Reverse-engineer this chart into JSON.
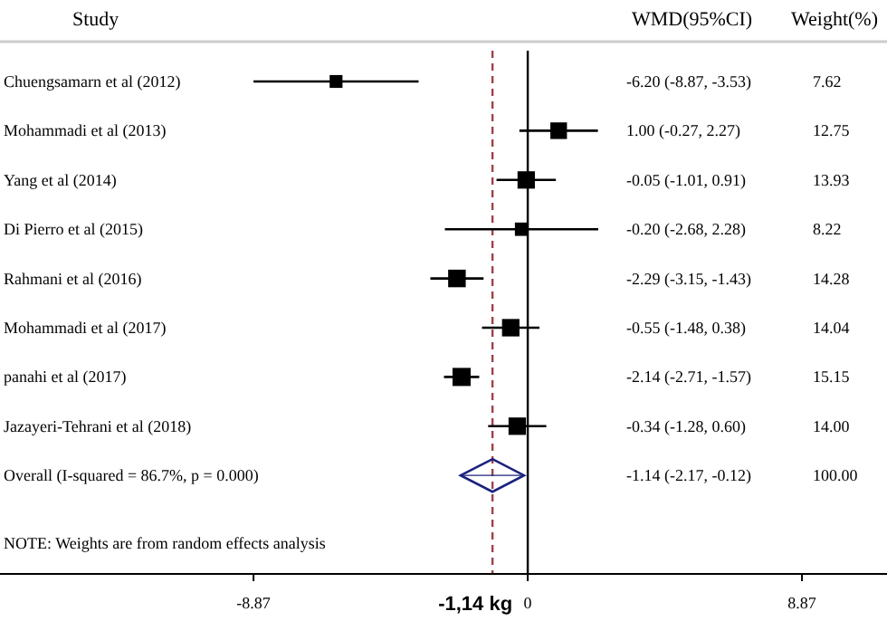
{
  "chart_data": {
    "type": "bubble",
    "orientation": "horizontal",
    "ylabel": "Study",
    "marker": "square",
    "grid": false,
    "categories": [
      "Chuengsamarn et al (2012)",
      "Mohammadi et al (2013)",
      "Yang et al (2014)",
      "Di Pierro et al (2015)",
      "Rahmani et al (2016)",
      "Mohammadi et al (2017)",
      "panahi et al (2017)",
      "Jazayeri-Tehrani et al (2018)",
      "Overall  (I-squared = 86.7%, p = 0.000)"
    ],
    "series": [
      {
        "color": "#000000",
        "values": [
          -6.2,
          1.0,
          -0.05,
          -0.2,
          -2.29,
          -0.55,
          -2.14,
          -0.34,
          null
        ],
        "errors": [
          [
            -8.87,
            -3.53
          ],
          [
            -0.27,
            2.27
          ],
          [
            -1.01,
            0.91
          ],
          [
            -2.68,
            2.28
          ],
          [
            -3.15,
            -1.43
          ],
          [
            -1.48,
            0.38
          ],
          [
            -2.71,
            -1.57
          ],
          [
            -1.28,
            0.6
          ],
          null
        ],
        "sizes": [
          0.503,
          0.842,
          0.919,
          0.543,
          0.943,
          0.927,
          1,
          0.924,
          null
        ]
      },
      {
        "type": "scatter",
        "marker": "diamond",
        "color": "#1a237e",
        "values": [
          null,
          null,
          null,
          null,
          null,
          null,
          null,
          null,
          -1.14
        ],
        "errors": [
          null,
          null,
          null,
          null,
          null,
          null,
          null,
          null,
          [
            -2.17,
            -0.12
          ]
        ]
      }
    ],
    "xlim": [
      -17.07,
      11.62
    ],
    "xticks": [
      -8.87,
      0,
      8.87
    ],
    "ref_lines": [
      {
        "axis": "x",
        "value": -1.14,
        "label": "-1,14 kg",
        "color": "#a0404a",
        "line_style": "dashed"
      },
      {
        "axis": "x",
        "value": 0,
        "color": "#000000",
        "line_style": "solid"
      }
    ],
    "annotations": [
      "WMD(95%CI)",
      "Weight(%)",
      "NOTE: Weights are from random effects analysis",
      "-6.20 (-8.87, -3.53)",
      "1.00 (-0.27, 2.27)",
      "-0.05 (-1.01, 0.91)",
      "-0.20 (-2.68, 2.28)",
      "-2.29 (-3.15, -1.43)",
      "-0.55 (-1.48, 0.38)",
      "-2.14 (-2.71, -1.57)",
      "-0.34 (-1.28, 0.60)",
      "-1.14 (-2.17, -0.12)",
      "7.62",
      "12.75",
      "13.93",
      "8.22",
      "14.28",
      "14.04",
      "15.15",
      "14.00",
      "100.00"
    ]
  }
}
